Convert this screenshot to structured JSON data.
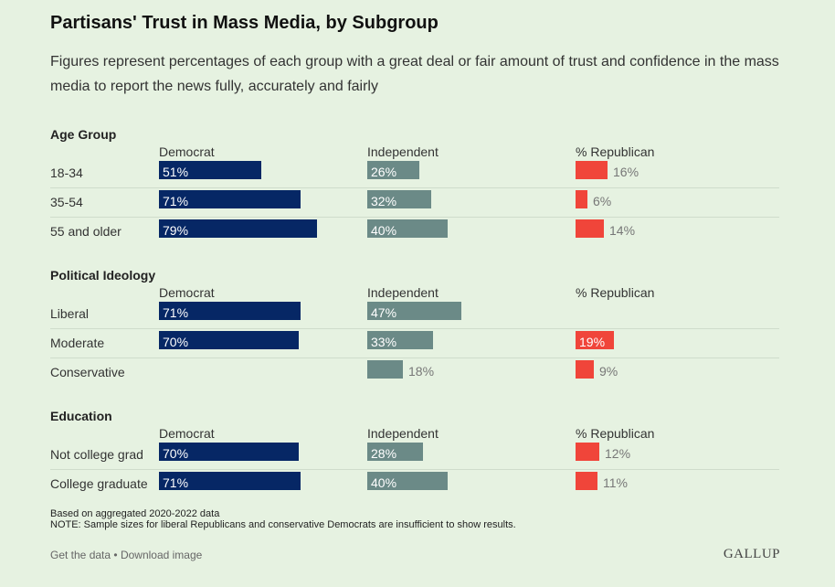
{
  "header": {
    "title": "Partisans' Trust in Mass Media, by Subgroup",
    "subtitle": "Figures represent percentages of each group with a great deal or fair amount of trust and confidence in the mass media to report the news fully, accurately and fairly"
  },
  "chart_data": {
    "type": "bar",
    "columns": [
      "Democrat",
      "Independent",
      "% Republican"
    ],
    "colors": {
      "Democrat": "#062765",
      "Independent": "#6b8a87",
      "Republican": "#f0453a"
    },
    "xlim": [
      0,
      100
    ],
    "groups": [
      {
        "name": "Age Group",
        "rows": [
          {
            "label": "18-34",
            "democrat": 51,
            "independent": 26,
            "republican": 16
          },
          {
            "label": "35-54",
            "democrat": 71,
            "independent": 32,
            "republican": 6
          },
          {
            "label": "55 and older",
            "democrat": 79,
            "independent": 40,
            "republican": 14
          }
        ]
      },
      {
        "name": "Political Ideology",
        "rows": [
          {
            "label": "Liberal",
            "democrat": 71,
            "independent": 47,
            "republican": null
          },
          {
            "label": "Moderate",
            "democrat": 70,
            "independent": 33,
            "republican": 19
          },
          {
            "label": "Conservative",
            "democrat": null,
            "independent": 18,
            "republican": 9
          }
        ]
      },
      {
        "name": "Education",
        "rows": [
          {
            "label": "Not college grad",
            "democrat": 70,
            "independent": 28,
            "republican": 12
          },
          {
            "label": "College graduate",
            "democrat": 71,
            "independent": 40,
            "republican": 11
          }
        ]
      }
    ]
  },
  "notes": {
    "line1": "Based on aggregated 2020-2022 data",
    "line2": "NOTE: Sample sizes for liberal Republicans and conservative Democrats are insufficient to show results."
  },
  "footer": {
    "get_data": "Get the data",
    "separator": "•",
    "download": "Download image",
    "logo": "GALLUP"
  }
}
